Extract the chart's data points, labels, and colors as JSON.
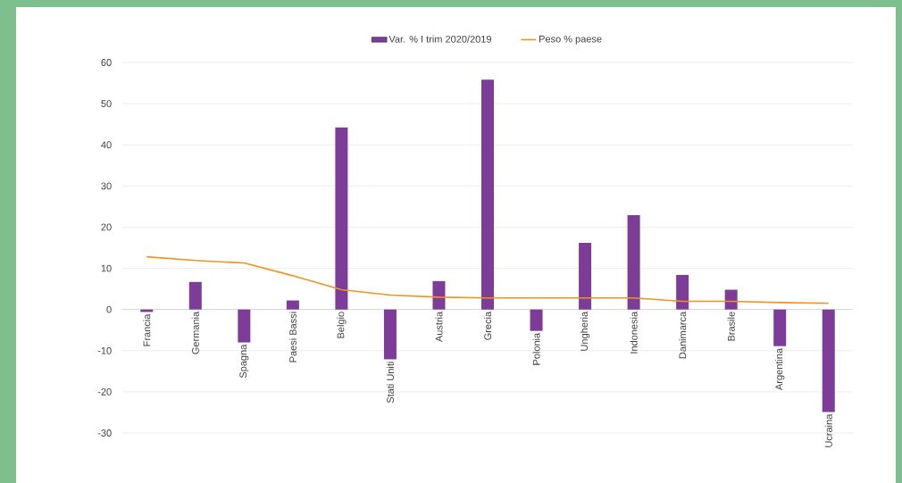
{
  "chart_data": {
    "type": "bar",
    "categories": [
      "Francia",
      "Germania",
      "Spagna",
      "Paesi Bassi",
      "Belgio",
      "Stati Uniti",
      "Austria",
      "Grecia",
      "Polonia",
      "Ungheria",
      "Indonesia",
      "Danimarca",
      "Brasile",
      "Argentina",
      "Ucraina"
    ],
    "series": [
      {
        "name": "Var. % I trim 2020/2019",
        "color": "#7d3c98",
        "values": [
          -0.6,
          6.7,
          -8.0,
          2.2,
          44.2,
          -12.1,
          6.9,
          55.8,
          -5.2,
          16.2,
          22.9,
          8.4,
          4.8,
          -8.9,
          -24.9
        ]
      },
      {
        "name": "Peso % paese",
        "type": "line",
        "color": "#f0941e",
        "values": [
          12.8,
          11.9,
          11.3,
          8.2,
          4.8,
          3.5,
          3.0,
          2.8,
          2.8,
          2.8,
          2.8,
          2.0,
          2.0,
          1.7,
          1.5
        ]
      }
    ],
    "ylim": [
      -30,
      60
    ],
    "yticks": [
      -30,
      -20,
      -10,
      0,
      10,
      20,
      30,
      40,
      50,
      60
    ],
    "grid": "y",
    "legend": "top",
    "marker": "none"
  }
}
